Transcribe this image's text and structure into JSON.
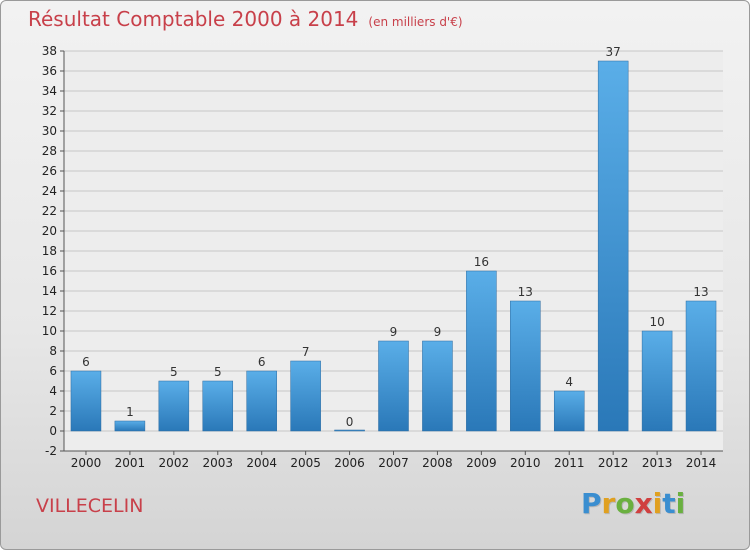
{
  "header": {
    "title": "Résultat Comptable 2000 à 2014",
    "subtitle": "(en milliers d'€)"
  },
  "footer": {
    "commune": "VILLECELIN",
    "logo": [
      "P",
      "r",
      "o",
      "x",
      "i",
      "t",
      "i"
    ]
  },
  "colors": {
    "bar_light": "#5aaee8",
    "bar_dark": "#2a78b8",
    "title": "#c8404a",
    "logo": [
      "#3a8ed0",
      "#e0a020",
      "#6ab040",
      "#d04040",
      "#e0a020",
      "#3a8ed0",
      "#6ab040"
    ]
  },
  "chart_data": {
    "type": "bar",
    "title": "Résultat Comptable 2000 à 2014",
    "subtitle": "(en milliers d'€)",
    "categories": [
      "2000",
      "2001",
      "2002",
      "2003",
      "2004",
      "2005",
      "2006",
      "2007",
      "2008",
      "2009",
      "2010",
      "2011",
      "2012",
      "2013",
      "2014"
    ],
    "values": [
      6,
      1,
      5,
      5,
      6,
      7,
      0,
      9,
      9,
      16,
      13,
      4,
      37,
      10,
      13
    ],
    "data_labels": [
      "6",
      "1",
      "5",
      "5",
      "6",
      "7",
      "0",
      "9",
      "9",
      "16",
      "13",
      "4",
      "37",
      "10",
      "13"
    ],
    "ylim": [
      -2,
      38
    ],
    "yticks": [
      "-2",
      "0",
      "2",
      "4",
      "6",
      "8",
      "10",
      "12",
      "14",
      "16",
      "18",
      "20",
      "22",
      "24",
      "26",
      "28",
      "30",
      "32",
      "34",
      "36",
      "38"
    ],
    "grid": true,
    "xlabel": "",
    "ylabel": ""
  }
}
